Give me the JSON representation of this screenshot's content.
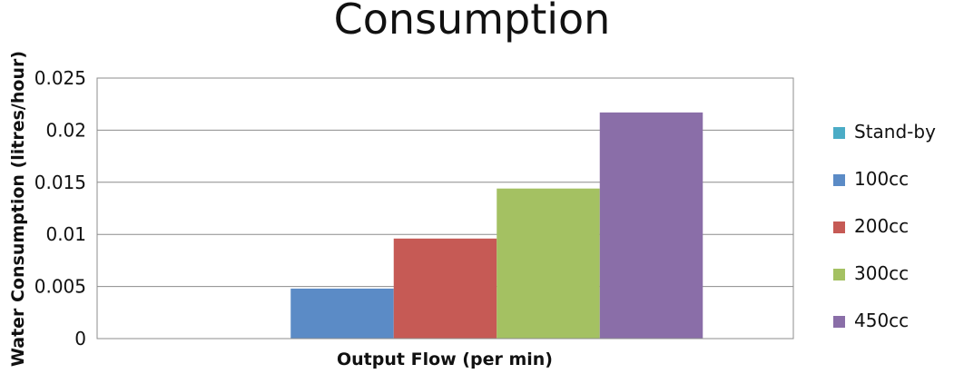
{
  "chart_data": {
    "type": "bar",
    "title": "Consumption",
    "xlabel": "Output Flow (per min)",
    "ylabel": "Water Consumption (litres/hour)",
    "ylim": [
      0,
      0.025
    ],
    "yticks": [
      "0",
      "0.005",
      "0.01",
      "0.015",
      "0.02",
      "0.025"
    ],
    "categories": [
      ""
    ],
    "grid": true,
    "legend_position": "right",
    "series": [
      {
        "name": "Stand-by",
        "values": [
          0
        ],
        "color": "#4bacc6"
      },
      {
        "name": "100cc",
        "values": [
          0.0048
        ],
        "color": "#5b8bc6"
      },
      {
        "name": "200cc",
        "values": [
          0.0096
        ],
        "color": "#c65a55"
      },
      {
        "name": "300cc",
        "values": [
          0.0144
        ],
        "color": "#a4c162"
      },
      {
        "name": "450cc",
        "values": [
          0.0217
        ],
        "color": "#8a6ea8"
      }
    ]
  }
}
